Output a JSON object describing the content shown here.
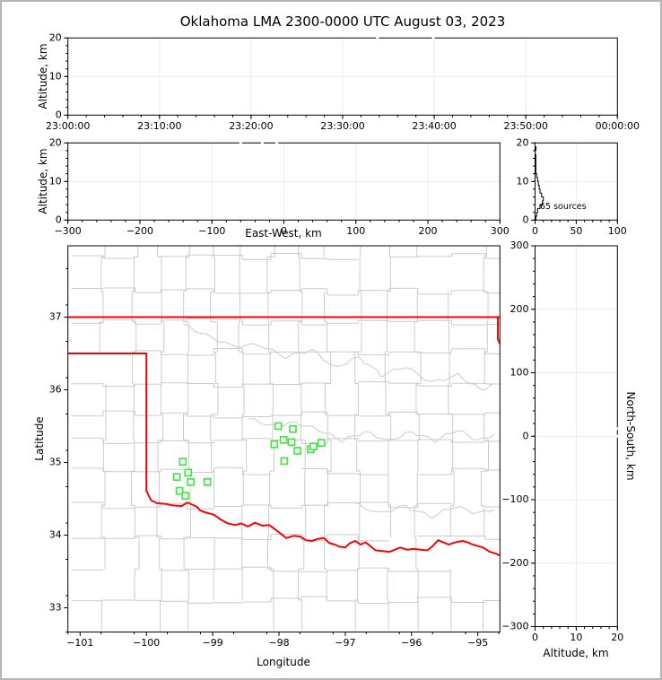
{
  "chart_data": {
    "type": "scatter",
    "title": "Oklahoma LMA 2300-0000 UTC August 03, 2023",
    "legend": "none",
    "grid": "faint major gridlines on altitude panels, none on map",
    "colors": {
      "county_lines": "#cbcbcb",
      "state_border": "#f10606",
      "station_marker": "#47e447",
      "grid_line": "#ececec",
      "axis": "#000000",
      "background": "#ffffff",
      "frame_border": "#b5b5b5"
    },
    "panels": [
      {
        "id": "time_height",
        "ylabel": "Altitude, km",
        "xlim": [
          0,
          60
        ],
        "ylim": [
          0,
          20
        ],
        "xticks": [
          {
            "v": 0,
            "label": "23:00:00"
          },
          {
            "v": 10,
            "label": "23:10:00"
          },
          {
            "v": 20,
            "label": "23:20:00"
          },
          {
            "v": 30,
            "label": "23:30:00"
          },
          {
            "v": 40,
            "label": "23:40:00"
          },
          {
            "v": 50,
            "label": "23:50:00"
          },
          {
            "v": 60,
            "label": "00:00:00"
          }
        ],
        "yticks": [
          {
            "v": 0,
            "label": "0"
          },
          {
            "v": 10,
            "label": "10"
          },
          {
            "v": 20,
            "label": "20"
          }
        ],
        "xminor": 2,
        "yminor": 2,
        "points": "65 VHF sources drawn in white (invisible on white background); visible only as tiny gaps crossing the top spine",
        "top_gap_marks_min": [
          33.8,
          39.9
        ]
      },
      {
        "id": "ew_height",
        "ylabel": "Altitude, km",
        "xlabel": "East-West, km",
        "xlim": [
          -300,
          300
        ],
        "ylim": [
          0,
          20
        ],
        "xticks": [
          {
            "v": -300,
            "label": "−300"
          },
          {
            "v": -200,
            "label": "−200"
          },
          {
            "v": -100,
            "label": "−100"
          },
          {
            "v": 0,
            "label": "0"
          },
          {
            "v": 100,
            "label": "100"
          },
          {
            "v": 200,
            "label": "200"
          },
          {
            "v": 300,
            "label": "300"
          }
        ],
        "yticks": [
          {
            "v": 0,
            "label": "0"
          },
          {
            "v": 10,
            "label": "10"
          },
          {
            "v": 20,
            "label": "20"
          }
        ],
        "xminor": 20,
        "yminor": 2,
        "top_gap_marks_km": [
          -60,
          -30,
          -10
        ]
      },
      {
        "id": "alt_hist",
        "annotation": "65 sources",
        "xlim": [
          0,
          100
        ],
        "ylim": [
          0,
          20
        ],
        "xticks": [
          {
            "v": 0,
            "label": "0"
          },
          {
            "v": 50,
            "label": "50"
          },
          {
            "v": 100,
            "label": "100"
          }
        ],
        "yticks": [
          {
            "v": 0,
            "label": "0"
          },
          {
            "v": 10,
            "label": "10"
          },
          {
            "v": 20,
            "label": "20"
          }
        ],
        "xminor": 10,
        "yminor": 2,
        "histogram_counts_per_km_from_0": [
          1,
          2,
          3,
          6,
          9,
          10,
          8,
          6,
          5,
          4,
          3,
          2,
          1,
          1,
          1,
          1,
          1,
          0,
          1,
          0
        ]
      },
      {
        "id": "map",
        "ylabel": "Latitude",
        "xlabel": "Longitude",
        "xlim": [
          -101.184,
          -94.667
        ],
        "ylim": [
          32.667,
          37.981
        ],
        "xticks": [
          {
            "v": -101,
            "label": "−101"
          },
          {
            "v": -100,
            "label": "−100"
          },
          {
            "v": -99,
            "label": "−99"
          },
          {
            "v": -98,
            "label": "−98"
          },
          {
            "v": -97,
            "label": "−97"
          },
          {
            "v": -96,
            "label": "−96"
          },
          {
            "v": -95,
            "label": "−95"
          }
        ],
        "yticks": [
          {
            "v": 37,
            "label": "37"
          },
          {
            "v": 36,
            "label": "36"
          },
          {
            "v": 35,
            "label": "35"
          },
          {
            "v": 34,
            "label": "34"
          },
          {
            "v": 33,
            "label": "33"
          }
        ],
        "xminor": 0.5,
        "yminor": 0.5
      },
      {
        "id": "ns_alt",
        "ylabel_right": "North-South, km",
        "xlabel": "Altitude, km",
        "xlim": [
          0,
          20
        ],
        "ylim": [
          -300,
          300
        ],
        "xticks": [
          {
            "v": 0,
            "label": "0"
          },
          {
            "v": 10,
            "label": "10"
          },
          {
            "v": 20,
            "label": "20"
          }
        ],
        "yticks": [
          {
            "v": 300,
            "label": "300"
          },
          {
            "v": 200,
            "label": "200"
          },
          {
            "v": 100,
            "label": "100"
          },
          {
            "v": 0,
            "label": "0"
          },
          {
            "v": -100,
            "label": "−100"
          },
          {
            "v": -200,
            "label": "−200"
          },
          {
            "v": -300,
            "label": "−300"
          }
        ],
        "xminor": 2,
        "yminor": 20,
        "right_gap_marks_km": [
          12,
          0
        ]
      }
    ],
    "stations_lonlat": [
      [
        -98.01,
        35.5
      ],
      [
        -97.79,
        35.46
      ],
      [
        -98.07,
        35.25
      ],
      [
        -97.93,
        35.31
      ],
      [
        -97.81,
        35.28
      ],
      [
        -97.72,
        35.16
      ],
      [
        -97.52,
        35.18
      ],
      [
        -97.48,
        35.22
      ],
      [
        -97.36,
        35.27
      ],
      [
        -97.92,
        35.02
      ],
      [
        -99.45,
        35.01
      ],
      [
        -99.37,
        34.86
      ],
      [
        -99.54,
        34.8
      ],
      [
        -99.33,
        34.73
      ],
      [
        -99.08,
        34.73
      ],
      [
        -99.5,
        34.61
      ],
      [
        -99.41,
        34.54
      ]
    ],
    "state_border_segments": [
      {
        "name": "kansas-line",
        "pts": [
          [
            -101.184,
            37.0
          ],
          [
            -94.667,
            37.0
          ]
        ]
      },
      {
        "name": "east-sliver",
        "pts": [
          [
            -94.698,
            37.0
          ],
          [
            -94.698,
            36.7
          ],
          [
            -94.667,
            36.63
          ]
        ]
      },
      {
        "name": "panhandle-west-red-river",
        "pts": [
          [
            -101.184,
            36.5
          ],
          [
            -100.0,
            36.5
          ],
          [
            -100.0,
            34.61
          ],
          [
            -99.93,
            34.48
          ],
          [
            -99.84,
            34.44
          ],
          [
            -99.71,
            34.43
          ],
          [
            -99.61,
            34.41
          ],
          [
            -99.47,
            34.4
          ],
          [
            -99.38,
            34.45
          ],
          [
            -99.24,
            34.39
          ],
          [
            -99.19,
            34.34
          ],
          [
            -99.1,
            34.31
          ],
          [
            -98.98,
            34.28
          ],
          [
            -98.87,
            34.21
          ],
          [
            -98.77,
            34.16
          ],
          [
            -98.66,
            34.14
          ],
          [
            -98.57,
            34.16
          ],
          [
            -98.47,
            34.12
          ],
          [
            -98.36,
            34.17
          ],
          [
            -98.25,
            34.13
          ],
          [
            -98.15,
            34.14
          ],
          [
            -98.06,
            34.08
          ],
          [
            -97.96,
            34.01
          ],
          [
            -97.89,
            33.96
          ],
          [
            -97.78,
            33.99
          ],
          [
            -97.68,
            33.98
          ],
          [
            -97.59,
            33.93
          ],
          [
            -97.5,
            33.92
          ],
          [
            -97.41,
            33.95
          ],
          [
            -97.32,
            33.96
          ],
          [
            -97.24,
            33.89
          ],
          [
            -97.16,
            33.87
          ],
          [
            -97.08,
            33.84
          ],
          [
            -97.0,
            33.83
          ],
          [
            -96.93,
            33.89
          ],
          [
            -96.85,
            33.92
          ],
          [
            -96.77,
            33.87
          ],
          [
            -96.69,
            33.9
          ],
          [
            -96.61,
            33.84
          ],
          [
            -96.54,
            33.79
          ],
          [
            -96.44,
            33.78
          ],
          [
            -96.33,
            33.77
          ],
          [
            -96.25,
            33.8
          ],
          [
            -96.17,
            33.83
          ],
          [
            -96.07,
            33.8
          ],
          [
            -95.96,
            33.81
          ],
          [
            -95.86,
            33.8
          ],
          [
            -95.76,
            33.79
          ],
          [
            -95.68,
            33.85
          ],
          [
            -95.6,
            33.93
          ],
          [
            -95.52,
            33.9
          ],
          [
            -95.44,
            33.87
          ],
          [
            -95.34,
            33.9
          ],
          [
            -95.23,
            33.92
          ],
          [
            -95.15,
            33.9
          ],
          [
            -95.08,
            33.87
          ],
          [
            -95.0,
            33.85
          ],
          [
            -94.92,
            33.83
          ],
          [
            -94.82,
            33.77
          ],
          [
            -94.74,
            33.75
          ],
          [
            -94.667,
            33.72
          ]
        ]
      }
    ]
  }
}
